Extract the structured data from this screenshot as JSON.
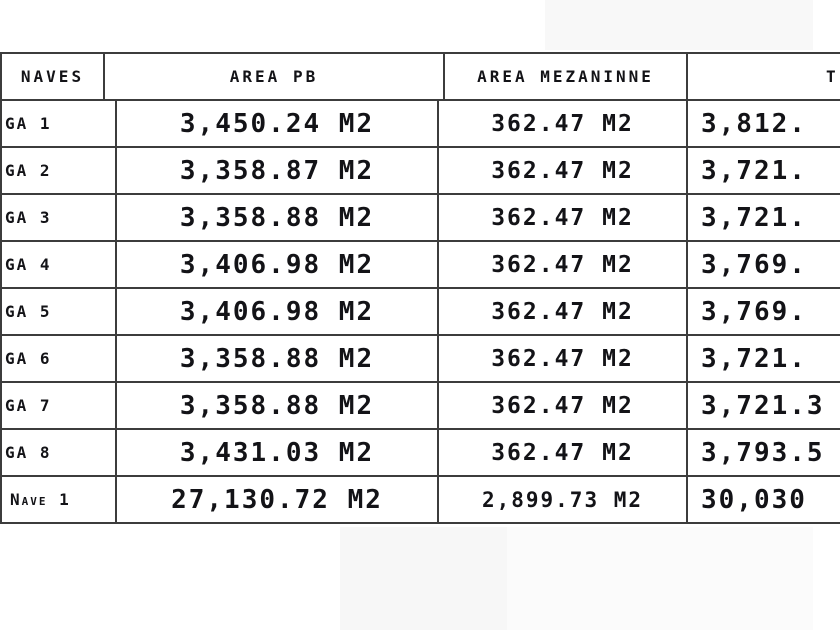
{
  "table": {
    "headers": {
      "naves": "NAVES",
      "area_pb": "AREA PB",
      "area_mezaninne": "AREA MEZANINNE",
      "total_visible": "T"
    },
    "rows": [
      {
        "name": "GA 1",
        "area_pb": "3,450.24 M2",
        "area_mezaninne": "362.47 M2",
        "total_visible": "3,812."
      },
      {
        "name": "GA 2",
        "area_pb": "3,358.87 M2",
        "area_mezaninne": "362.47 M2",
        "total_visible": "3,721."
      },
      {
        "name": "GA 3",
        "area_pb": "3,358.88 M2",
        "area_mezaninne": "362.47 M2",
        "total_visible": "3,721."
      },
      {
        "name": "GA 4",
        "area_pb": "3,406.98 M2",
        "area_mezaninne": "362.47 M2",
        "total_visible": "3,769."
      },
      {
        "name": "GA 5",
        "area_pb": "3,406.98 M2",
        "area_mezaninne": "362.47 M2",
        "total_visible": "3,769."
      },
      {
        "name": "GA 6",
        "area_pb": "3,358.88 M2",
        "area_mezaninne": "362.47 M2",
        "total_visible": "3,721."
      },
      {
        "name": "GA 7",
        "area_pb": "3,358.88 M2",
        "area_mezaninne": "362.47 M2",
        "total_visible": "3,721.3"
      },
      {
        "name": "GA 8",
        "area_pb": "3,431.03 M2",
        "area_mezaninne": "362.47 M2",
        "total_visible": "3,793.5"
      },
      {
        "name": "Nave 1",
        "area_pb": "27,130.72 M2",
        "area_mezaninne": "2,899.73 M2",
        "total_visible": "30,030"
      }
    ]
  },
  "colors": {
    "line": "#3c3c3c",
    "text": "#131317",
    "background": "#ffffff",
    "shade": "#f8f8f8"
  }
}
